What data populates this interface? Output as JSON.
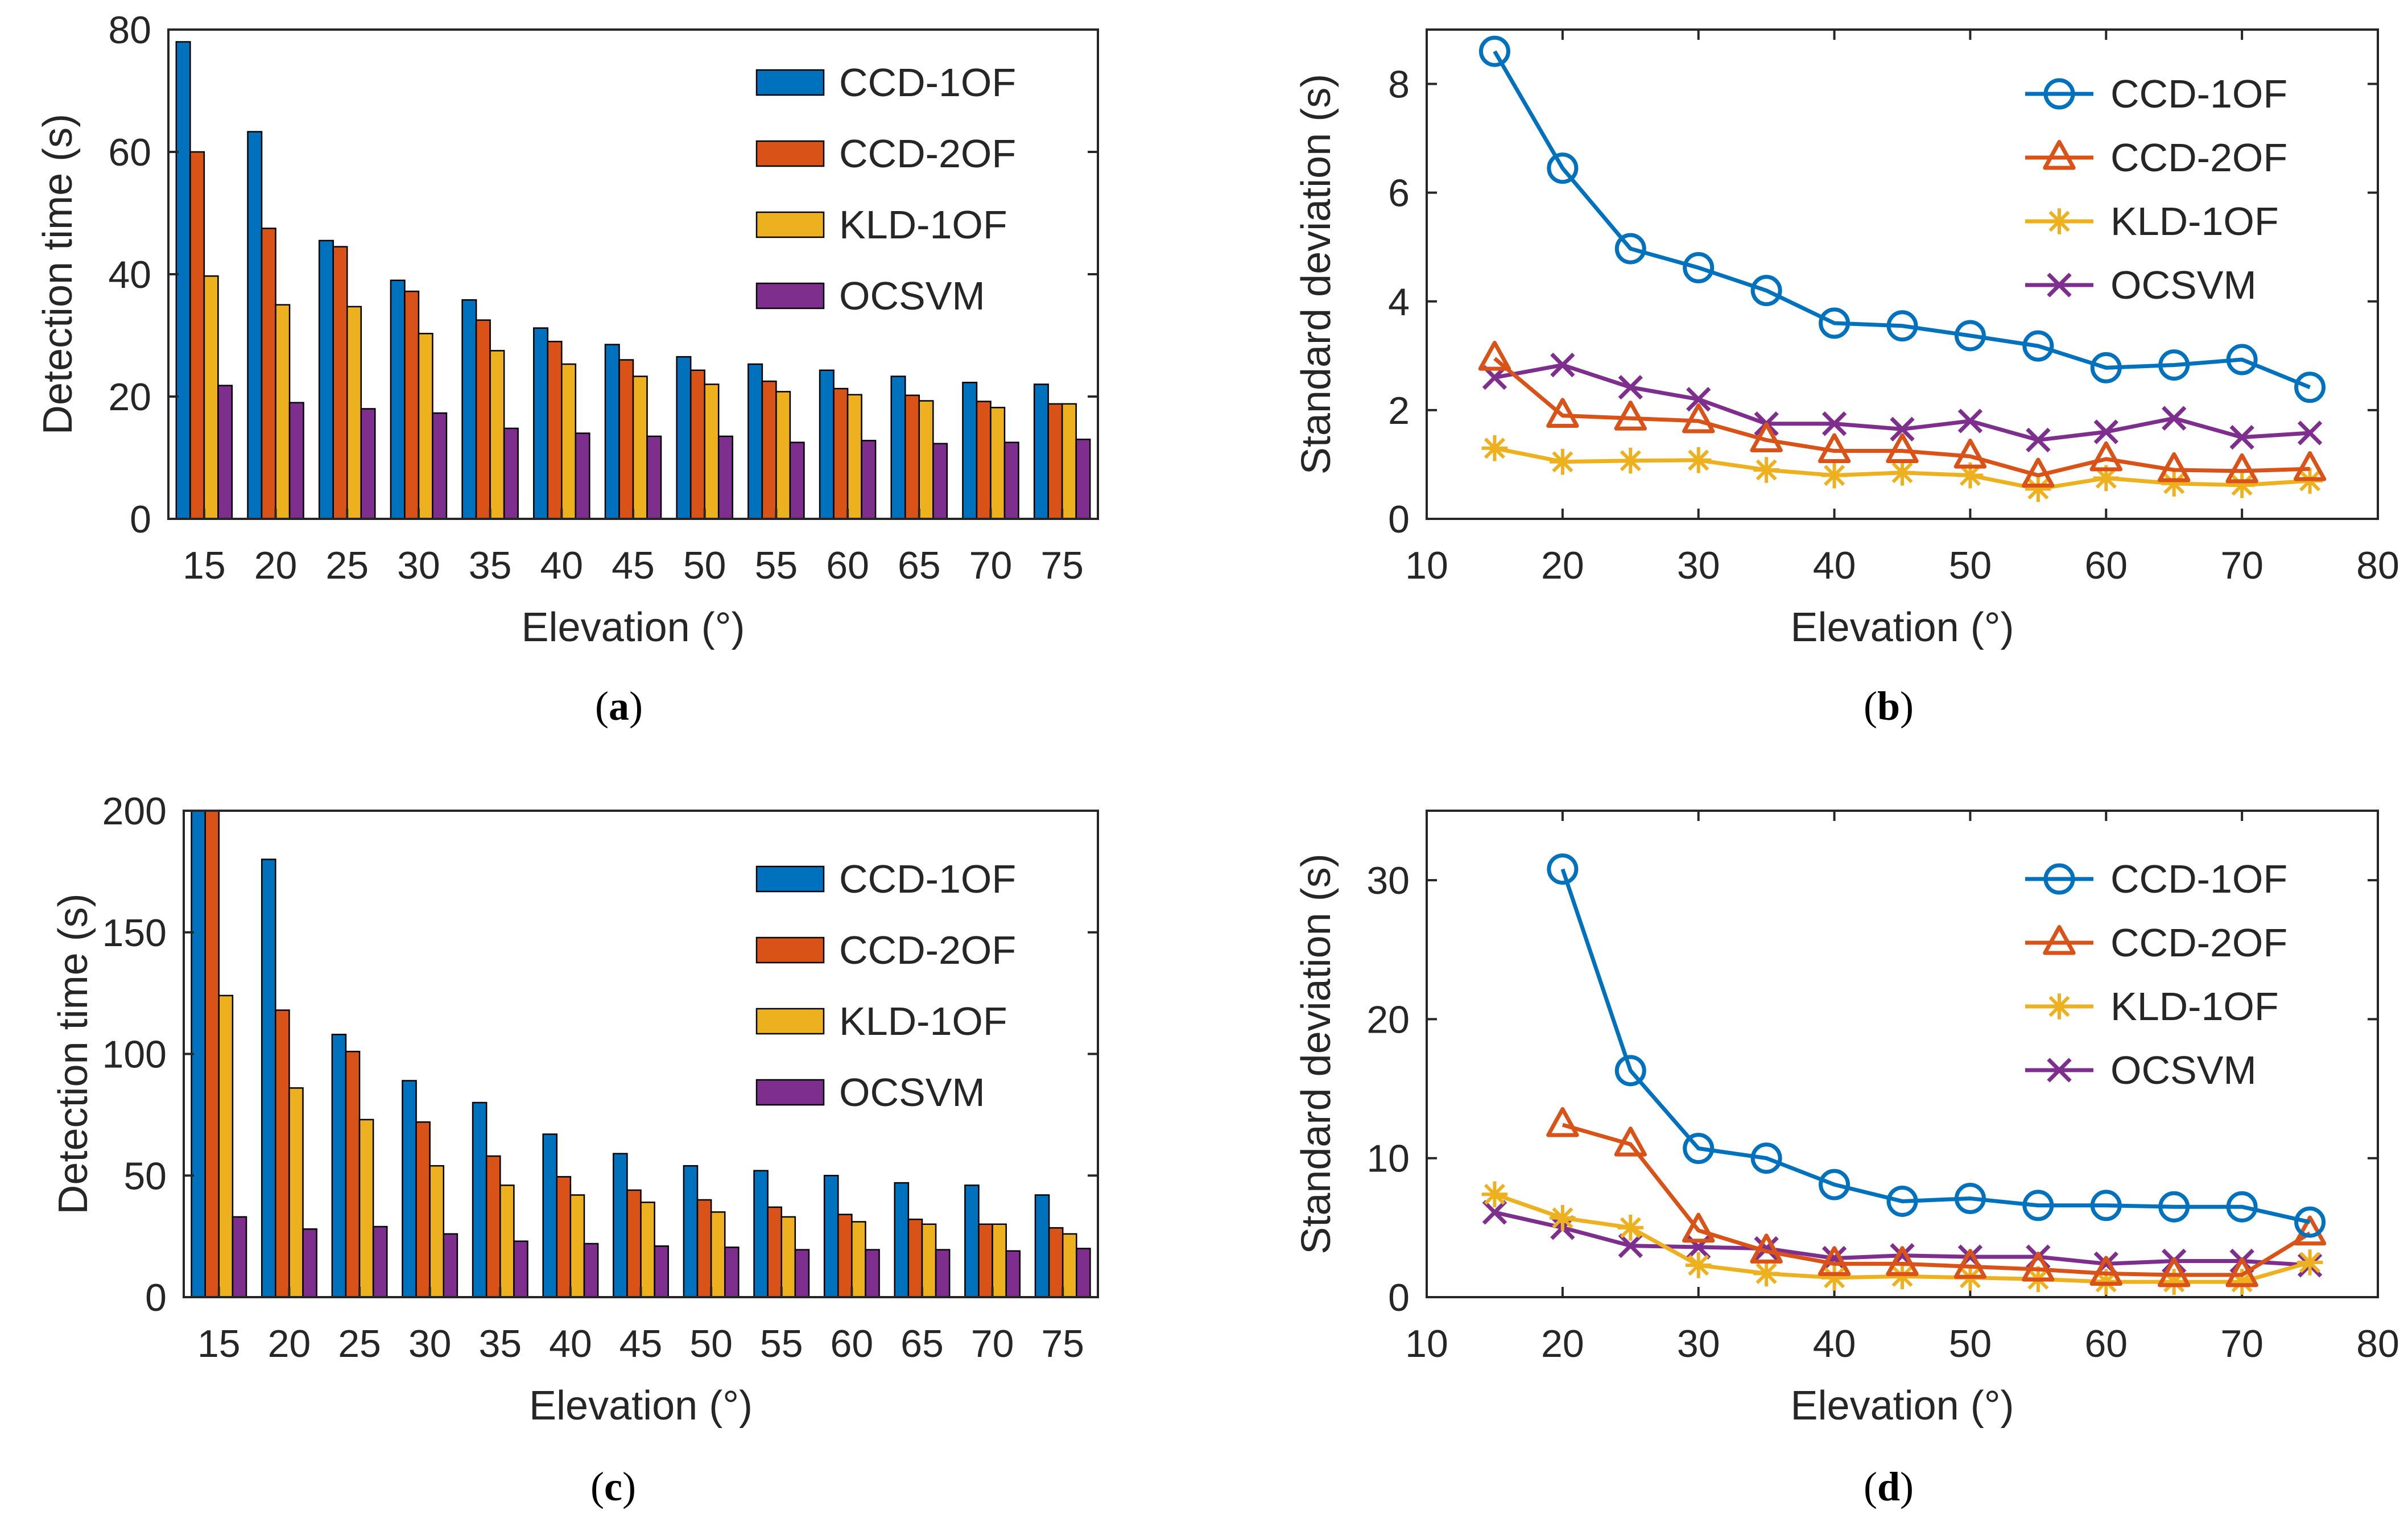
{
  "colors": {
    "ccd1": "#0072BD",
    "ccd2": "#D95319",
    "kld": "#EDB120",
    "ocsvm": "#7E2F8E",
    "axis": "#262626",
    "background": "#ffffff"
  },
  "chart_data": [
    {
      "id": "a",
      "type": "bar",
      "caption": {
        "open": "(",
        "letter": "a",
        "close": ")"
      },
      "xlabel": "Elevation (°)",
      "ylabel": "Detection time (s)",
      "ylim": [
        0,
        80
      ],
      "yticks": [
        0,
        20,
        40,
        60,
        80
      ],
      "categories": [
        "15",
        "20",
        "25",
        "30",
        "35",
        "40",
        "45",
        "50",
        "55",
        "60",
        "65",
        "70",
        "75"
      ],
      "legend_position": "top-right",
      "series": [
        {
          "name": "CCD-1OF",
          "color": "#0072BD",
          "values": [
            78,
            63.3,
            45.5,
            39,
            35.8,
            31.2,
            28.5,
            26.5,
            25.3,
            24.3,
            23.3,
            22.3,
            22
          ]
        },
        {
          "name": "CCD-2OF",
          "color": "#D95319",
          "values": [
            60,
            47.5,
            44.5,
            37.2,
            32.5,
            29,
            26,
            24.3,
            22.5,
            21.3,
            20.2,
            19.2,
            18.8
          ]
        },
        {
          "name": "KLD-1OF",
          "color": "#EDB120",
          "values": [
            39.7,
            35,
            34.7,
            30.3,
            27.5,
            25.3,
            23.3,
            22,
            20.8,
            20.3,
            19.3,
            18.2,
            18.8
          ]
        },
        {
          "name": "OCSVM",
          "color": "#7E2F8E",
          "values": [
            21.8,
            19,
            18,
            17.3,
            14.8,
            14,
            13.5,
            13.5,
            12.5,
            12.8,
            12.3,
            12.5,
            13
          ]
        }
      ]
    },
    {
      "id": "b",
      "type": "line",
      "caption": {
        "open": "(",
        "letter": "b",
        "close": ")"
      },
      "xlabel": "Elevation (°)",
      "ylabel": "Standard deviation (s)",
      "xlim": [
        10,
        80
      ],
      "xticks": [
        10,
        20,
        30,
        40,
        50,
        60,
        70,
        80
      ],
      "ylim": [
        0,
        9
      ],
      "yticks": [
        0,
        2,
        4,
        6,
        8
      ],
      "x": [
        15,
        20,
        25,
        30,
        35,
        40,
        45,
        50,
        55,
        60,
        65,
        70,
        75
      ],
      "legend_position": "top-right",
      "series": [
        {
          "name": "CCD-1OF",
          "color": "#0072BD",
          "marker": "circle",
          "values": [
            8.6,
            6.45,
            4.97,
            4.62,
            4.2,
            3.6,
            3.55,
            3.37,
            3.18,
            2.78,
            2.83,
            2.93,
            2.42
          ]
        },
        {
          "name": "CCD-2OF",
          "color": "#D95319",
          "marker": "triangle",
          "values": [
            2.95,
            1.9,
            1.85,
            1.8,
            1.45,
            1.25,
            1.25,
            1.15,
            0.8,
            1.1,
            0.9,
            0.88,
            0.92
          ]
        },
        {
          "name": "KLD-1OF",
          "color": "#EDB120",
          "marker": "asterisk",
          "values": [
            1.3,
            1.05,
            1.07,
            1.08,
            0.9,
            0.8,
            0.85,
            0.8,
            0.55,
            0.75,
            0.65,
            0.62,
            0.7
          ]
        },
        {
          "name": "OCSVM",
          "color": "#7E2F8E",
          "marker": "x",
          "values": [
            2.6,
            2.83,
            2.42,
            2.2,
            1.75,
            1.75,
            1.65,
            1.8,
            1.45,
            1.6,
            1.85,
            1.5,
            1.58
          ]
        }
      ]
    },
    {
      "id": "c",
      "type": "bar",
      "caption": {
        "open": "(",
        "letter": "c",
        "close": ")"
      },
      "xlabel": "Elevation (°)",
      "ylabel": "Detection time (s)",
      "ylim": [
        0,
        200
      ],
      "yticks": [
        0,
        50,
        100,
        150,
        200
      ],
      "categories": [
        "15",
        "20",
        "25",
        "30",
        "35",
        "40",
        "45",
        "50",
        "55",
        "60",
        "65",
        "70",
        "75"
      ],
      "legend_position": "top-right",
      "series": [
        {
          "name": "CCD-1OF",
          "color": "#0072BD",
          "values": [
            200,
            180,
            108,
            89,
            80,
            67,
            59,
            54,
            52,
            50,
            47,
            46,
            42
          ]
        },
        {
          "name": "CCD-2OF",
          "color": "#D95319",
          "values": [
            200,
            118,
            101,
            72,
            58,
            49.5,
            44,
            40,
            37,
            34,
            32,
            30,
            28.5
          ]
        },
        {
          "name": "KLD-1OF",
          "color": "#EDB120",
          "values": [
            124,
            86,
            73,
            54,
            46,
            42,
            39,
            35,
            33,
            31,
            30,
            30,
            26
          ]
        },
        {
          "name": "OCSVM",
          "color": "#7E2F8E",
          "values": [
            33,
            28,
            29,
            26,
            23,
            22,
            21,
            20.5,
            19.5,
            19.5,
            19.5,
            19,
            20
          ]
        }
      ]
    },
    {
      "id": "d",
      "type": "line",
      "caption": {
        "open": "(",
        "letter": "d",
        "close": ")"
      },
      "xlabel": "Elevation (°)",
      "ylabel": "Standard deviation (s)",
      "xlim": [
        10,
        80
      ],
      "xticks": [
        10,
        20,
        30,
        40,
        50,
        60,
        70,
        80
      ],
      "ylim": [
        0,
        35
      ],
      "yticks": [
        0,
        10,
        20,
        30
      ],
      "legend_position": "top-right",
      "series": [
        {
          "name": "CCD-1OF",
          "color": "#0072BD",
          "marker": "circle",
          "x": [
            20,
            25,
            30,
            35,
            40,
            45,
            50,
            55,
            60,
            65,
            70,
            75
          ],
          "values": [
            30.8,
            16.3,
            10.7,
            10.0,
            8.1,
            6.9,
            7.1,
            6.6,
            6.6,
            6.5,
            6.5,
            5.4
          ]
        },
        {
          "name": "CCD-2OF",
          "color": "#D95319",
          "marker": "triangle",
          "x": [
            20,
            25,
            30,
            35,
            40,
            45,
            50,
            55,
            60,
            65,
            70,
            75
          ],
          "values": [
            12.4,
            11.0,
            4.8,
            3.3,
            2.4,
            2.4,
            2.2,
            2.0,
            1.7,
            1.6,
            1.6,
            4.6
          ]
        },
        {
          "name": "KLD-1OF",
          "color": "#EDB120",
          "marker": "asterisk",
          "x": [
            15,
            20,
            25,
            30,
            35,
            40,
            45,
            50,
            55,
            60,
            65,
            70,
            75
          ],
          "values": [
            7.4,
            5.7,
            5.0,
            2.3,
            1.7,
            1.4,
            1.5,
            1.4,
            1.3,
            1.1,
            1.1,
            1.1,
            2.5
          ]
        },
        {
          "name": "OCSVM",
          "color": "#7E2F8E",
          "marker": "x",
          "x": [
            15,
            20,
            25,
            30,
            35,
            40,
            45,
            50,
            55,
            60,
            65,
            70,
            75
          ],
          "values": [
            6.1,
            5.0,
            3.7,
            3.6,
            3.5,
            2.8,
            3.0,
            2.9,
            2.9,
            2.4,
            2.6,
            2.6,
            2.3
          ]
        }
      ]
    }
  ]
}
